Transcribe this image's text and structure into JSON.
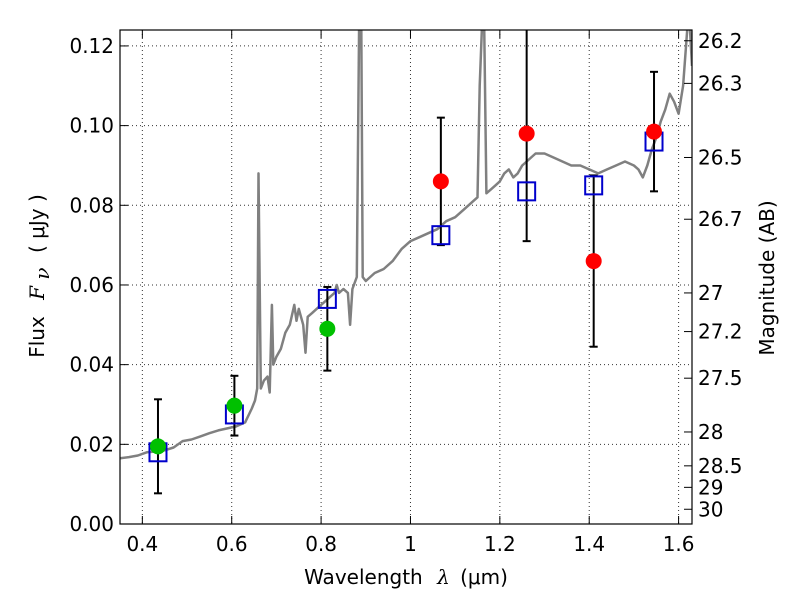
{
  "chart_data": {
    "type": "scatter",
    "xlabel": {
      "prefix": "Wavelength",
      "symbol": "λ",
      "unit": "(μm)"
    },
    "ylabel": {
      "prefix": "Flux",
      "symbol": "F",
      "subscript": "ν",
      "unit": "( μJy )"
    },
    "y2label": "Magnitude (AB)",
    "xlim": [
      0.35,
      1.63
    ],
    "ylim": [
      0.0,
      0.124
    ],
    "grid": true,
    "x_ticks": [
      {
        "value": 0.4,
        "label": "0.4"
      },
      {
        "value": 0.6,
        "label": "0.6"
      },
      {
        "value": 0.8,
        "label": "0.8"
      },
      {
        "value": 1.0,
        "label": "1"
      },
      {
        "value": 1.2,
        "label": "1.2"
      },
      {
        "value": 1.4,
        "label": "1.4"
      },
      {
        "value": 1.6,
        "label": "1.6"
      }
    ],
    "y_ticks": [
      {
        "value": 0.0,
        "label": "0.00"
      },
      {
        "value": 0.02,
        "label": "0.02"
      },
      {
        "value": 0.04,
        "label": "0.04"
      },
      {
        "value": 0.06,
        "label": "0.06"
      },
      {
        "value": 0.08,
        "label": "0.08"
      },
      {
        "value": 0.1,
        "label": "0.10"
      },
      {
        "value": 0.12,
        "label": "0.12"
      }
    ],
    "mag_ticks": [
      {
        "label": "26.2",
        "flux": 0.1213
      },
      {
        "label": "26.3",
        "flux": 0.1106
      },
      {
        "label": "26.5",
        "flux": 0.092
      },
      {
        "label": "26.7",
        "flux": 0.0765
      },
      {
        "label": "27",
        "flux": 0.058
      },
      {
        "label": "27.2",
        "flux": 0.0483
      },
      {
        "label": "27.5",
        "flux": 0.0366
      },
      {
        "label": "28",
        "flux": 0.0231
      },
      {
        "label": "28.5",
        "flux": 0.0146
      },
      {
        "label": "29",
        "flux": 0.0092
      },
      {
        "label": "30",
        "flux": 0.0037
      }
    ],
    "series": [
      {
        "name": "model_sed",
        "style": "line",
        "color": "#808080",
        "points": [
          [
            0.35,
            0.0165
          ],
          [
            0.37,
            0.0168
          ],
          [
            0.39,
            0.0172
          ],
          [
            0.41,
            0.018
          ],
          [
            0.43,
            0.0182
          ],
          [
            0.45,
            0.0185
          ],
          [
            0.47,
            0.0192
          ],
          [
            0.49,
            0.0208
          ],
          [
            0.51,
            0.0212
          ],
          [
            0.53,
            0.022
          ],
          [
            0.55,
            0.0228
          ],
          [
            0.57,
            0.0235
          ],
          [
            0.59,
            0.024
          ],
          [
            0.61,
            0.0245
          ],
          [
            0.63,
            0.0255
          ],
          [
            0.645,
            0.029
          ],
          [
            0.652,
            0.031
          ],
          [
            0.657,
            0.034
          ],
          [
            0.66,
            0.088
          ],
          [
            0.665,
            0.034
          ],
          [
            0.672,
            0.036
          ],
          [
            0.68,
            0.037
          ],
          [
            0.685,
            0.033
          ],
          [
            0.69,
            0.055
          ],
          [
            0.693,
            0.04
          ],
          [
            0.7,
            0.042
          ],
          [
            0.71,
            0.044
          ],
          [
            0.72,
            0.048
          ],
          [
            0.73,
            0.05
          ],
          [
            0.74,
            0.055
          ],
          [
            0.745,
            0.051
          ],
          [
            0.75,
            0.054
          ],
          [
            0.76,
            0.05
          ],
          [
            0.765,
            0.043
          ],
          [
            0.77,
            0.052
          ],
          [
            0.78,
            0.053
          ],
          [
            0.79,
            0.054
          ],
          [
            0.8,
            0.055
          ],
          [
            0.81,
            0.056
          ],
          [
            0.82,
            0.057
          ],
          [
            0.83,
            0.058
          ],
          [
            0.835,
            0.06
          ],
          [
            0.84,
            0.058
          ],
          [
            0.85,
            0.059
          ],
          [
            0.86,
            0.058
          ],
          [
            0.865,
            0.05
          ],
          [
            0.87,
            0.059
          ],
          [
            0.88,
            0.062
          ],
          [
            0.885,
            0.125
          ],
          [
            0.89,
            0.125
          ],
          [
            0.893,
            0.062
          ],
          [
            0.9,
            0.061
          ],
          [
            0.92,
            0.063
          ],
          [
            0.94,
            0.064
          ],
          [
            0.96,
            0.066
          ],
          [
            0.98,
            0.069
          ],
          [
            1.0,
            0.071
          ],
          [
            1.02,
            0.072
          ],
          [
            1.04,
            0.073
          ],
          [
            1.06,
            0.074
          ],
          [
            1.08,
            0.076
          ],
          [
            1.1,
            0.077
          ],
          [
            1.12,
            0.079
          ],
          [
            1.14,
            0.081
          ],
          [
            1.15,
            0.082
          ],
          [
            1.155,
            0.11
          ],
          [
            1.16,
            0.125
          ],
          [
            1.165,
            0.125
          ],
          [
            1.17,
            0.083
          ],
          [
            1.18,
            0.084
          ],
          [
            1.19,
            0.085
          ],
          [
            1.2,
            0.086
          ],
          [
            1.21,
            0.088
          ],
          [
            1.22,
            0.089
          ],
          [
            1.23,
            0.087
          ],
          [
            1.24,
            0.088
          ],
          [
            1.25,
            0.09
          ],
          [
            1.26,
            0.091
          ],
          [
            1.27,
            0.092
          ],
          [
            1.28,
            0.093
          ],
          [
            1.3,
            0.093
          ],
          [
            1.32,
            0.092
          ],
          [
            1.34,
            0.091
          ],
          [
            1.36,
            0.09
          ],
          [
            1.38,
            0.09
          ],
          [
            1.4,
            0.089
          ],
          [
            1.42,
            0.088
          ],
          [
            1.44,
            0.089
          ],
          [
            1.46,
            0.09
          ],
          [
            1.48,
            0.091
          ],
          [
            1.5,
            0.09
          ],
          [
            1.51,
            0.089
          ],
          [
            1.52,
            0.087
          ],
          [
            1.53,
            0.09
          ],
          [
            1.54,
            0.094
          ],
          [
            1.55,
            0.097
          ],
          [
            1.56,
            0.101
          ],
          [
            1.57,
            0.104
          ],
          [
            1.58,
            0.108
          ],
          [
            1.59,
            0.106
          ],
          [
            1.6,
            0.103
          ],
          [
            1.61,
            0.11
          ],
          [
            1.62,
            0.125
          ],
          [
            1.625,
            0.125
          ],
          [
            1.63,
            0.115
          ]
        ]
      },
      {
        "name": "model_photometry",
        "style": "open-square",
        "color": "#0000cc",
        "points": [
          [
            0.435,
            0.018
          ],
          [
            0.606,
            0.0275
          ],
          [
            0.814,
            0.0565
          ],
          [
            1.068,
            0.0725
          ],
          [
            1.26,
            0.0835
          ],
          [
            1.41,
            0.085
          ],
          [
            1.545,
            0.096
          ]
        ]
      },
      {
        "name": "observed_optical",
        "style": "filled-circle",
        "color": "#00c000",
        "points": [
          [
            0.435,
            0.0195,
            0.0118
          ],
          [
            0.606,
            0.0297,
            0.0075
          ],
          [
            0.814,
            0.049,
            0.0105
          ]
        ]
      },
      {
        "name": "observed_nir",
        "style": "filled-circle",
        "color": "#ff0000",
        "points": [
          [
            1.068,
            0.086,
            0.016
          ],
          [
            1.26,
            0.098,
            0.027
          ],
          [
            1.41,
            0.066,
            0.0215
          ],
          [
            1.545,
            0.0985,
            0.015
          ]
        ]
      }
    ]
  }
}
